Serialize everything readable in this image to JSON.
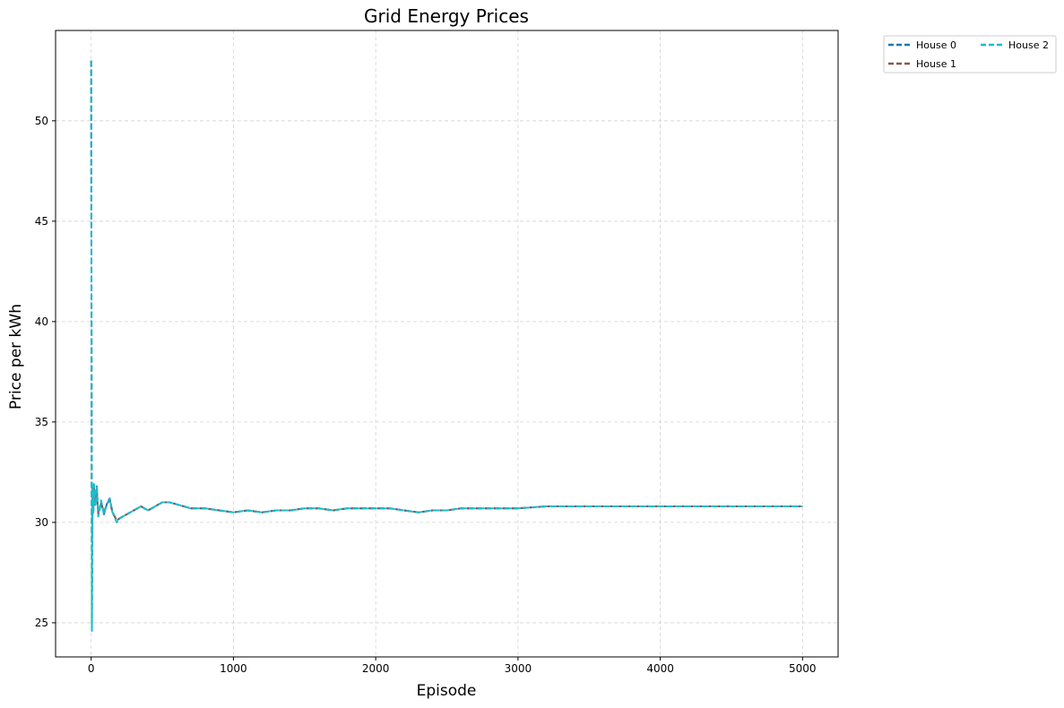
{
  "chart_data": {
    "type": "line",
    "title": "Grid Energy Prices",
    "xlabel": "Episode",
    "ylabel": "Price per kWh",
    "xlim": [
      -250,
      5250
    ],
    "ylim": [
      23.3,
      54.5
    ],
    "xticks": [
      0,
      1000,
      2000,
      3000,
      4000,
      5000
    ],
    "yticks": [
      25,
      30,
      35,
      40,
      45,
      50
    ],
    "grid": true,
    "grid_style": "dashed",
    "legend_position": "outside-top-right",
    "legend_columns": 2,
    "line_style": "dashed",
    "series": [
      {
        "name": "House 0",
        "color": "#1f77b4",
        "x": [
          0,
          5,
          10,
          15,
          20,
          30,
          40,
          50,
          70,
          90,
          110,
          130,
          150,
          180,
          200,
          250,
          300,
          350,
          400,
          450,
          500,
          550,
          600,
          700,
          800,
          900,
          1000,
          1100,
          1200,
          1300,
          1400,
          1500,
          1600,
          1700,
          1800,
          1900,
          2000,
          2100,
          2200,
          2300,
          2400,
          2500,
          2600,
          2800,
          3000,
          3200,
          3400,
          3600,
          3800,
          4000,
          4200,
          4400,
          4600,
          4800,
          5000
        ],
        "y": [
          53.0,
          28.5,
          31.8,
          30.5,
          31.9,
          30.8,
          31.8,
          30.3,
          31.0,
          30.4,
          30.9,
          31.2,
          30.5,
          30.1,
          30.2,
          30.4,
          30.6,
          30.8,
          30.6,
          30.8,
          31.0,
          31.0,
          30.9,
          30.7,
          30.7,
          30.6,
          30.5,
          30.6,
          30.5,
          30.6,
          30.6,
          30.7,
          30.7,
          30.6,
          30.7,
          30.7,
          30.7,
          30.7,
          30.6,
          30.5,
          30.6,
          30.6,
          30.7,
          30.7,
          30.7,
          30.8,
          30.8,
          30.8,
          30.8,
          30.8,
          30.8,
          30.8,
          30.8,
          30.8,
          30.8
        ]
      },
      {
        "name": "House 1",
        "color": "#8c564b",
        "x": [
          0,
          5,
          10,
          15,
          20,
          30,
          40,
          50,
          70,
          90,
          110,
          130,
          150,
          180,
          200,
          250,
          300,
          350,
          400,
          450,
          500,
          550,
          600,
          700,
          800,
          900,
          1000,
          1100,
          1200,
          1300,
          1400,
          1500,
          1600,
          1700,
          1800,
          1900,
          2000,
          2100,
          2200,
          2300,
          2400,
          2500,
          2600,
          2800,
          3000,
          3200,
          3400,
          3600,
          3800,
          4000,
          4200,
          4400,
          4600,
          4800,
          5000
        ],
        "y": [
          53.0,
          24.6,
          31.7,
          30.6,
          31.8,
          30.9,
          31.7,
          30.4,
          31.0,
          30.5,
          30.9,
          31.1,
          30.5,
          30.1,
          30.2,
          30.4,
          30.6,
          30.8,
          30.6,
          30.8,
          31.0,
          31.0,
          30.9,
          30.7,
          30.7,
          30.6,
          30.5,
          30.6,
          30.5,
          30.6,
          30.6,
          30.7,
          30.7,
          30.6,
          30.7,
          30.7,
          30.7,
          30.7,
          30.6,
          30.5,
          30.6,
          30.6,
          30.7,
          30.7,
          30.7,
          30.8,
          30.8,
          30.8,
          30.8,
          30.8,
          30.8,
          30.8,
          30.8,
          30.8,
          30.8
        ]
      },
      {
        "name": "House 2",
        "color": "#17becf",
        "x": [
          0,
          5,
          10,
          15,
          20,
          30,
          40,
          50,
          70,
          90,
          110,
          130,
          150,
          180,
          200,
          250,
          300,
          350,
          400,
          450,
          500,
          550,
          600,
          700,
          800,
          900,
          1000,
          1100,
          1200,
          1300,
          1400,
          1500,
          1600,
          1700,
          1800,
          1900,
          2000,
          2100,
          2200,
          2300,
          2400,
          2500,
          2600,
          2800,
          3000,
          3200,
          3400,
          3600,
          3800,
          4000,
          4200,
          4400,
          4600,
          4800,
          5000
        ],
        "y": [
          53.0,
          24.6,
          31.9,
          30.5,
          31.9,
          30.8,
          31.8,
          30.3,
          31.1,
          30.4,
          30.9,
          31.2,
          30.5,
          30.0,
          30.2,
          30.4,
          30.6,
          30.8,
          30.6,
          30.8,
          31.0,
          31.0,
          30.9,
          30.7,
          30.7,
          30.6,
          30.5,
          30.6,
          30.5,
          30.6,
          30.6,
          30.7,
          30.7,
          30.6,
          30.7,
          30.7,
          30.7,
          30.7,
          30.6,
          30.5,
          30.6,
          30.6,
          30.7,
          30.7,
          30.7,
          30.8,
          30.8,
          30.8,
          30.8,
          30.8,
          30.8,
          30.8,
          30.8,
          30.8,
          30.8
        ]
      }
    ]
  }
}
